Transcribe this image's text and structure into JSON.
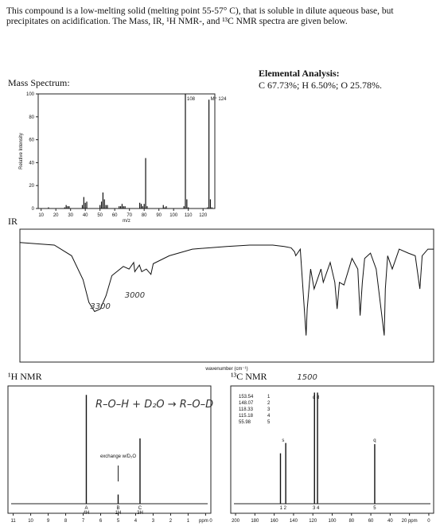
{
  "header": {
    "text": "This compound is a low-melting solid (melting point 55-57° C), that is soluble in dilute aqueous base, but precipitates on acidification. The Mass, IR, ¹H NMR-, and ¹³C NMR spectra are given below."
  },
  "elemental_analysis": {
    "title": "Elemental Analysis:",
    "text": "C 67.73%; H 6.50%; O 25.78%."
  },
  "mass_spectrum": {
    "label": "Mass Spectrum:",
    "type": "bar",
    "x_label": "m/z",
    "y_label": "Relative Intensity",
    "xlim": [
      8,
      128
    ],
    "xticks": [
      10,
      20,
      30,
      40,
      50,
      60,
      70,
      80,
      90,
      100,
      110,
      120
    ],
    "ylim": [
      0,
      100
    ],
    "yticks": [
      0,
      20,
      40,
      60,
      80,
      100
    ],
    "x": [
      15,
      26,
      27,
      28,
      29,
      38,
      39,
      40,
      41,
      50,
      51,
      52,
      53,
      54,
      55,
      63,
      64,
      65,
      66,
      67,
      77,
      78,
      79,
      80,
      81,
      82,
      93,
      94,
      95,
      107,
      108,
      109,
      110,
      123,
      124,
      125,
      126
    ],
    "values": [
      1,
      1,
      3,
      2,
      2,
      3,
      10,
      5,
      6,
      3,
      6,
      14,
      8,
      3,
      3,
      2,
      2,
      4,
      2,
      2,
      5,
      4,
      2,
      4,
      44,
      2,
      3,
      1,
      2,
      2,
      100,
      8,
      1,
      1,
      95,
      8,
      1
    ],
    "peak_labels": [
      {
        "x": 108,
        "label": "108"
      },
      {
        "x": 124,
        "label": "M⁺ 124"
      }
    ]
  },
  "ir": {
    "label": "IR",
    "type": "line",
    "x_label": "wavenumber (cm⁻¹)",
    "xlim": [
      4000,
      400
    ],
    "ylim": [
      0,
      100
    ],
    "x": [
      4000,
      3700,
      3550,
      3450,
      3400,
      3350,
      3300,
      3250,
      3200,
      3100,
      3050,
      3010,
      3000,
      2960,
      2940,
      2900,
      2860,
      2840,
      2700,
      2500,
      2200,
      2000,
      1800,
      1700,
      1640,
      1610,
      1600,
      1560,
      1510,
      1500,
      1470,
      1440,
      1380,
      1360,
      1300,
      1260,
      1240,
      1220,
      1180,
      1110,
      1060,
      1040,
      1020,
      1000,
      950,
      900,
      830,
      820,
      800,
      760,
      740,
      700,
      620,
      560,
      520,
      500,
      450,
      400
    ],
    "values": [
      90,
      88,
      80,
      62,
      45,
      38,
      40,
      50,
      65,
      72,
      70,
      75,
      68,
      73,
      68,
      70,
      66,
      74,
      80,
      85,
      87,
      88,
      88,
      87,
      86,
      83,
      80,
      85,
      20,
      40,
      70,
      55,
      70,
      60,
      75,
      60,
      40,
      60,
      58,
      78,
      70,
      35,
      60,
      78,
      82,
      70,
      20,
      55,
      80,
      70,
      75,
      85,
      82,
      80,
      55,
      80,
      85,
      85
    ],
    "annotations": [
      {
        "x": 3300,
        "label": "3300"
      },
      {
        "x": 3000,
        "label": "3000"
      },
      {
        "x": 1500,
        "label": "1500"
      }
    ]
  },
  "h_nmr": {
    "label": "¹H NMR",
    "type": "stick",
    "xlim": [
      11.3,
      -0.3
    ],
    "ylim": [
      0,
      100
    ],
    "xticks": [
      11,
      10,
      9,
      8,
      7,
      6,
      5,
      4,
      3,
      2,
      1,
      {
        "value": 0,
        "label": "ppm 0"
      }
    ],
    "x": [
      6.82,
      5.0,
      3.75
    ],
    "values": [
      95,
      8,
      57
    ],
    "integrals": [
      {
        "letter": "A",
        "h": "4H"
      },
      {
        "letter": "B",
        "h": "1H"
      },
      {
        "letter": "C",
        "h": "3H"
      }
    ],
    "exchange_note": "exchange w/D₂O",
    "handwritten": "R–O–H + D₂O → R–O–D"
  },
  "c_nmr": {
    "label": "¹³C NMR",
    "type": "stick",
    "xlim": [
      205,
      -5
    ],
    "ylim": [
      0,
      100
    ],
    "xticks": [
      200,
      180,
      160,
      140,
      120,
      100,
      80,
      60,
      40,
      {
        "value": 20,
        "label": "20 ppm"
      },
      0
    ],
    "x": [
      153.54,
      148.07,
      118.33,
      115.18,
      55.98
    ],
    "values": [
      44,
      53,
      97,
      97,
      52
    ],
    "table": [
      [
        "153.54",
        "1"
      ],
      [
        "148.07",
        "2"
      ],
      [
        "118.33",
        "3"
      ],
      [
        "115.18",
        "4"
      ],
      [
        "55.98",
        "5"
      ]
    ],
    "multiplicity": [
      {
        "x": 150.8,
        "label": "s"
      },
      {
        "x": 116.7,
        "label": "d d"
      },
      {
        "x": 55.98,
        "label": "q"
      }
    ],
    "assign": [
      {
        "x": 150.8,
        "label": "1 2"
      },
      {
        "x": 116.7,
        "label": "3 4"
      },
      {
        "x": 55.98,
        "label": "5"
      }
    ]
  }
}
